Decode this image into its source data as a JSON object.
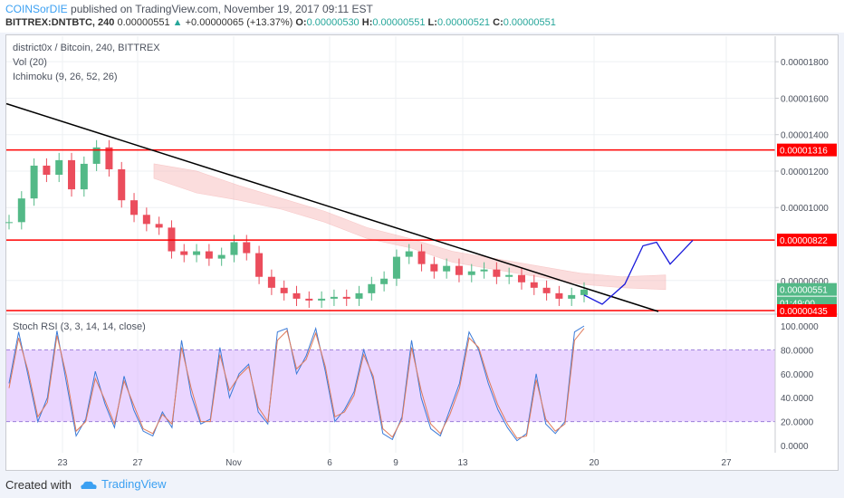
{
  "header": {
    "author": "COINSorDIE",
    "published_text": "published on TradingView.com, November 19, 2017 09:11 EST",
    "symbol": "BITTREX:DNTBTC, 240",
    "price": "0.00000551",
    "change_arrow": "▲",
    "change": "+0.00000065 (+13.37%)",
    "o_label": "O:",
    "o_value": "0.00000530",
    "h_label": "H:",
    "h_value": "0.00000551",
    "l_label": "L:",
    "l_value": "0.00000521",
    "c_label": "C:",
    "c_value": "0.00000551"
  },
  "legend": {
    "title": "district0x / Bitcoin, 240, BITTREX",
    "vol": "Vol (20)",
    "ichimoku": "Ichimoku (9, 26, 52, 26)",
    "stoch": "Stoch RSI (3, 3, 14, 14, close)"
  },
  "footer": {
    "created": "Created with",
    "brand": "TradingView"
  },
  "colors": {
    "up": "#53b987",
    "down": "#eb4d5c",
    "line": "#ff0000",
    "trend": "#000000",
    "projection": "#1a1adb",
    "stoch_band": "#d9b3ff"
  },
  "chart_data": [
    {
      "type": "candlestick",
      "title": "district0x / Bitcoin, 240, BITTREX",
      "x_tick_labels": [
        "23",
        "27",
        "Nov",
        "6",
        "9",
        "13",
        "20",
        "27"
      ],
      "y_tick_labels": [
        "0.00001800",
        "0.00001600",
        "0.00001400",
        "0.00001200",
        "0.00001000",
        "0.00000600"
      ],
      "ylim": [
        4.2e-06,
        1.94e-05
      ],
      "price_labels": [
        "0.00001316",
        "0.00000822",
        "0.00000551",
        "01:49:00",
        "0.00000435"
      ],
      "horizontal_lines": [
        1.316e-05,
        8.22e-06,
        4.35e-06
      ],
      "trendline": {
        "from": [
          0,
          1.57e-05
        ],
        "to": [
          720,
          4.3e-06
        ]
      },
      "projection": [
        [
          645,
          5.2e-06
        ],
        [
          665,
          4.7e-06
        ],
        [
          690,
          5.8e-06
        ],
        [
          710,
          7.9e-06
        ],
        [
          725,
          8.1e-06
        ],
        [
          740,
          6.9e-06
        ],
        [
          765,
          8.2e-06
        ]
      ],
      "price_series": [
        9.2,
        10.5,
        12.3,
        11.8,
        12.6,
        11.0,
        12.4,
        13.3,
        12.1,
        10.4,
        9.6,
        9.1,
        8.9,
        7.6,
        7.4,
        7.6,
        7.2,
        7.4,
        8.1,
        7.5,
        6.2,
        5.6,
        5.3,
        5.0,
        4.9,
        5.0,
        5.1,
        5.0,
        5.3,
        5.8,
        6.1,
        7.3,
        7.6,
        6.9,
        6.5,
        6.8,
        6.3,
        6.5,
        6.6,
        6.2,
        6.3,
        5.9,
        5.6,
        5.3,
        5.0,
        5.2,
        5.5
      ],
      "ichimoku_cloud": {
        "span_a": [
          12.4,
          12.0,
          11.2,
          10.5,
          9.8,
          8.9,
          8.3,
          7.6,
          7.2,
          6.8,
          6.4,
          6.2,
          6.3
        ],
        "span_b": [
          12.0,
          11.2,
          10.8,
          10.3,
          9.6,
          8.7,
          8.2,
          7.4,
          7.0,
          6.6,
          6.2,
          6.0,
          5.9
        ]
      },
      "stoch_rsi": {
        "y_tick_labels": [
          "100.0000",
          "80.0000",
          "60.0000",
          "40.0000",
          "20.0000",
          "0.0000"
        ],
        "upper_band": 80,
        "lower_band": 20,
        "k": [
          52,
          95,
          58,
          20,
          40,
          96,
          52,
          8,
          22,
          62,
          35,
          15,
          58,
          30,
          12,
          8,
          28,
          15,
          88,
          42,
          18,
          22,
          82,
          40,
          60,
          68,
          28,
          18,
          95,
          98,
          60,
          75,
          98,
          62,
          20,
          30,
          45,
          80,
          55,
          10,
          5,
          24,
          88,
          40,
          14,
          8,
          30,
          52,
          95,
          80,
          52,
          30,
          15,
          4,
          10,
          60,
          18,
          10,
          20,
          95,
          100
        ],
        "d": [
          48,
          90,
          62,
          24,
          36,
          92,
          58,
          12,
          20,
          56,
          38,
          18,
          54,
          34,
          14,
          10,
          26,
          18,
          82,
          48,
          20,
          20,
          76,
          46,
          58,
          66,
          32,
          20,
          88,
          96,
          64,
          72,
          94,
          66,
          24,
          28,
          42,
          76,
          58,
          14,
          7,
          22,
          82,
          46,
          18,
          10,
          26,
          48,
          90,
          82,
          56,
          34,
          18,
          6,
          8,
          55,
          22,
          12,
          18,
          88,
          98
        ]
      }
    }
  ]
}
